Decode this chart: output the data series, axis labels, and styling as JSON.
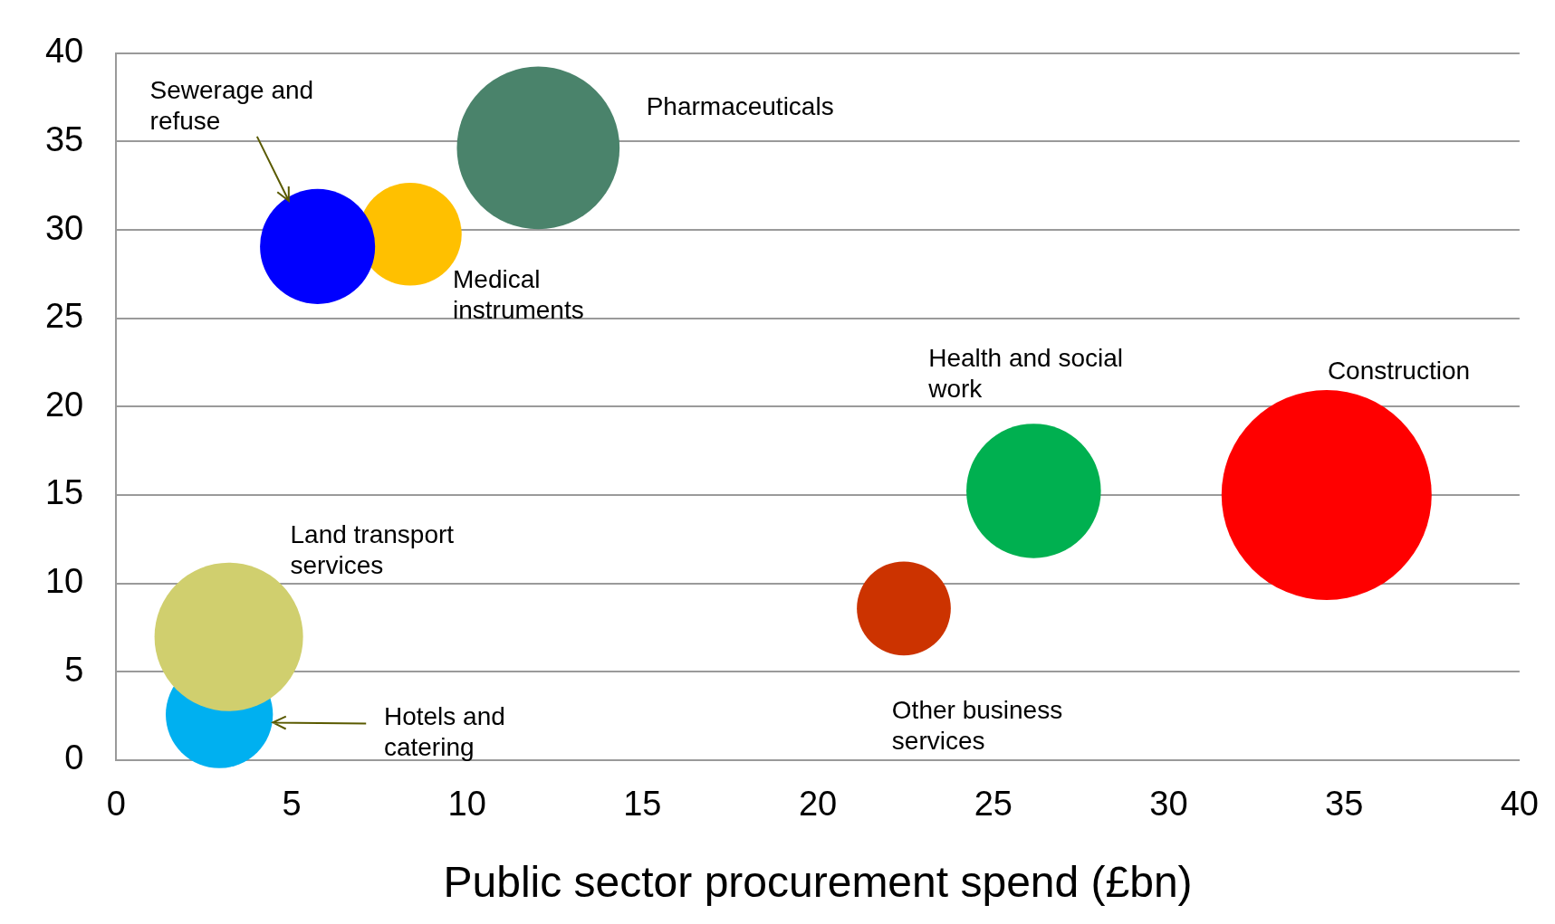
{
  "chart_data": {
    "type": "bubble",
    "xlabel": "Public sector procurement spend (£bn)",
    "xlim": [
      0,
      40
    ],
    "xticks": [
      0,
      5,
      10,
      15,
      20,
      25,
      30,
      35,
      40
    ],
    "ylim": [
      0,
      40
    ],
    "yticks": [
      0,
      5,
      10,
      15,
      20,
      25,
      30,
      35,
      40
    ],
    "grid": "y",
    "legend": false,
    "marker": "circle",
    "series": [
      {
        "name": "Sewerage and refuse",
        "color": "#0000ff",
        "x": [
          5.74
        ],
        "values": [
          29.06
        ],
        "sizes": [
          0.3
        ]
      },
      {
        "name": "Medical instruments",
        "color": "#ffc000",
        "x": [
          8.38
        ],
        "values": [
          29.76
        ],
        "sizes": [
          0.24
        ]
      },
      {
        "name": "Pharmaceuticals",
        "color": "#4a836b",
        "x": [
          12.03
        ],
        "values": [
          34.64
        ],
        "sizes": [
          0.6
        ]
      },
      {
        "name": "Health and social work",
        "color": "#00b050",
        "x": [
          26.15
        ],
        "values": [
          15.23
        ],
        "sizes": [
          0.41
        ]
      },
      {
        "name": "Construction",
        "color": "#ff0000",
        "x": [
          34.5
        ],
        "values": [
          15.0
        ],
        "sizes": [
          1
        ]
      },
      {
        "name": "Other business services",
        "color": "#cc3300",
        "x": [
          22.45
        ],
        "values": [
          8.58
        ],
        "sizes": [
          0.2
        ]
      },
      {
        "name": "Land transport services",
        "color": "#d0cf6e",
        "x": [
          3.21
        ],
        "values": [
          6.97
        ],
        "sizes": [
          0.5
        ]
      },
      {
        "name": "Hotels and catering",
        "color": "#00b0f0",
        "x": [
          2.94
        ],
        "values": [
          2.57
        ],
        "sizes": [
          0.26
        ]
      }
    ]
  }
}
